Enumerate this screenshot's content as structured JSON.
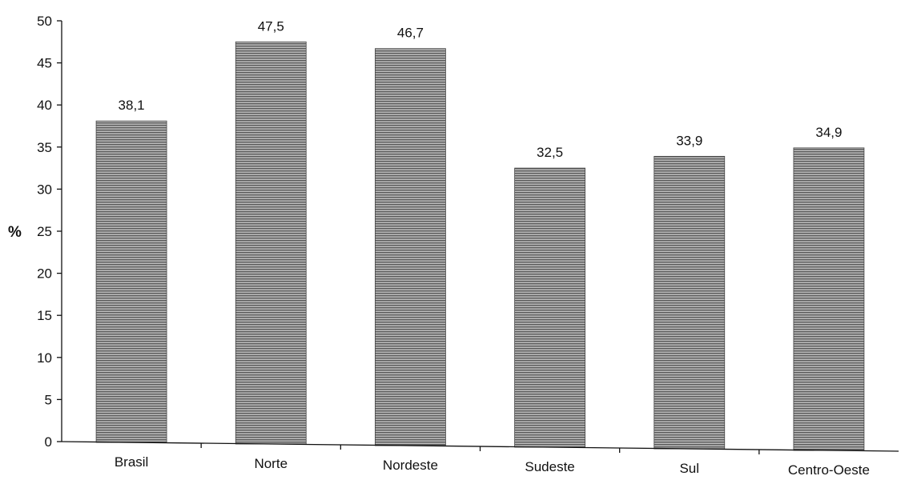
{
  "chart_data": {
    "type": "bar",
    "categories": [
      "Brasil",
      "Norte",
      "Nordeste",
      "Sudeste",
      "Sul",
      "Centro-Oeste"
    ],
    "values": [
      38.1,
      47.5,
      46.7,
      32.5,
      33.9,
      34.9
    ],
    "value_labels": [
      "38,1",
      "47,5",
      "46,7",
      "32,5",
      "33,9",
      "34,9"
    ],
    "title": "",
    "xlabel": "",
    "ylabel": "%",
    "ylim": [
      0,
      50
    ],
    "yticks": [
      0,
      5,
      10,
      15,
      20,
      25,
      30,
      35,
      40,
      45,
      50
    ],
    "grid": false,
    "legend": "none",
    "bar_color": "#8a8a8a"
  }
}
